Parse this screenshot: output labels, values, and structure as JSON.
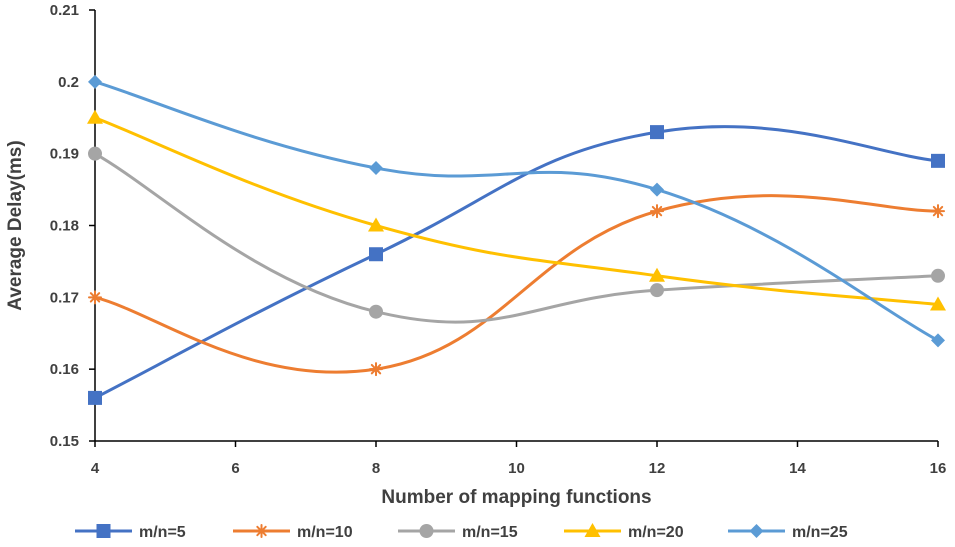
{
  "chart_data": {
    "type": "line",
    "title": "",
    "xlabel": "Number of mapping functions",
    "ylabel": "Average Delay(ms)",
    "x": [
      4,
      8,
      12,
      16
    ],
    "xlim": [
      4,
      16
    ],
    "xticks": [
      4,
      6,
      8,
      10,
      12,
      14,
      16
    ],
    "xtick_labels": [
      "4",
      "6",
      "8",
      "10",
      "12",
      "14",
      "16"
    ],
    "ylim": [
      0.15,
      0.21
    ],
    "yticks": [
      0.15,
      0.16,
      0.17,
      0.18,
      0.19,
      0.2,
      0.21
    ],
    "ytick_labels": [
      "0.15",
      "0.16",
      "0.17",
      "0.18",
      "0.19",
      "0.2",
      "0.21"
    ],
    "grid": false,
    "smooth": true,
    "legend_position": "bottom",
    "series": [
      {
        "name": "m/n=5",
        "label": "m/n=5",
        "color": "#4472C4",
        "marker": "square",
        "values": [
          0.156,
          0.176,
          0.193,
          0.189
        ]
      },
      {
        "name": "m/n=10",
        "label": "m/n=10",
        "color": "#ED7D31",
        "marker": "asterisk",
        "values": [
          0.17,
          0.16,
          0.182,
          0.182
        ]
      },
      {
        "name": "m/n=15",
        "label": "m/n=15",
        "color": "#A5A5A5",
        "marker": "circle",
        "values": [
          0.19,
          0.168,
          0.171,
          0.173
        ]
      },
      {
        "name": "m/n=20",
        "label": "m/n=20",
        "color": "#FFC000",
        "marker": "triangle",
        "values": [
          0.195,
          0.18,
          0.173,
          0.169
        ]
      },
      {
        "name": "m/n=25",
        "label": "m/n=25",
        "color": "#5B9BD5",
        "marker": "diamond",
        "values": [
          0.2,
          0.188,
          0.185,
          0.164
        ]
      }
    ]
  }
}
